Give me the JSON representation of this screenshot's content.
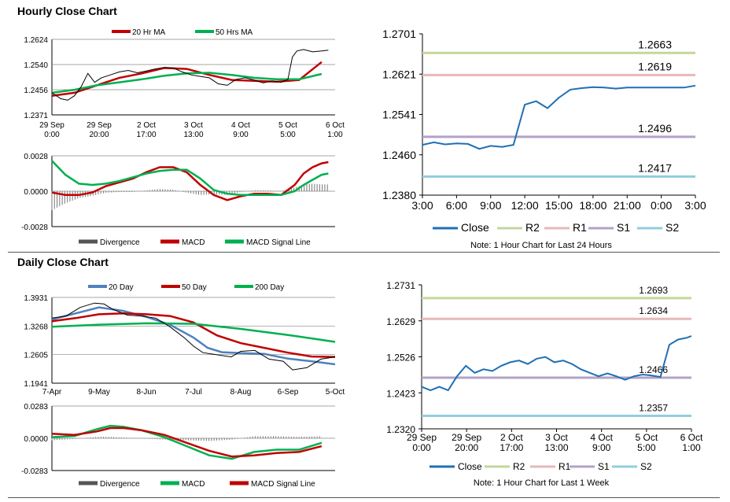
{
  "hourly": {
    "title": "Hourly Close Chart",
    "price_chart": {
      "type": "line",
      "legend": [
        "20 Hr MA",
        "50 Hrs MA"
      ],
      "yticks": [
        "1.2624",
        "1.2540",
        "1.2456",
        "1.2371"
      ],
      "ylim": [
        1.2371,
        1.2624
      ],
      "xticks": [
        [
          "29 Sep",
          "0:00"
        ],
        [
          "29 Sep",
          "20:00"
        ],
        [
          "2 Oct",
          "17:00"
        ],
        [
          "3 Oct",
          "13:00"
        ],
        [
          "4 Oct",
          "9:00"
        ],
        [
          "5 Oct",
          "5:00"
        ],
        [
          "6 Oct",
          "1:00"
        ]
      ],
      "series": [
        {
          "name": "20 Hr MA",
          "color": "#c00000",
          "x": [
            0,
            0.5,
            1,
            1.5,
            2,
            2.5,
            3,
            3.5,
            4,
            4.5,
            5,
            5.5,
            6
          ],
          "values": [
            1.2435,
            1.2445,
            1.247,
            1.2495,
            1.251,
            1.2528,
            1.2525,
            1.2505,
            1.2488,
            1.2485,
            1.2482,
            1.2488,
            1.2548
          ]
        },
        {
          "name": "50 Hrs MA",
          "color": "#00b050",
          "x": [
            0,
            0.5,
            1,
            1.5,
            2,
            2.5,
            3,
            3.5,
            4,
            4.5,
            5,
            5.5,
            6
          ],
          "values": [
            1.2445,
            1.2455,
            1.247,
            1.248,
            1.249,
            1.2502,
            1.251,
            1.2512,
            1.2505,
            1.2495,
            1.249,
            1.249,
            1.2508
          ]
        },
        {
          "name": "Close",
          "color": "#000000",
          "x": [
            0,
            0.2,
            0.35,
            0.5,
            0.65,
            0.8,
            0.95,
            1.1,
            1.3,
            1.5,
            1.7,
            1.9,
            2.1,
            2.3,
            2.5,
            2.7,
            2.9,
            3.1,
            3.3,
            3.5,
            3.7,
            3.9,
            4.1,
            4.3,
            4.5,
            4.7,
            4.9,
            5.1,
            5.25,
            5.35,
            5.45,
            5.6,
            5.8,
            6.0,
            6.15
          ],
          "values": [
            1.2445,
            1.2425,
            1.242,
            1.2435,
            1.2465,
            1.251,
            1.248,
            1.2495,
            1.2505,
            1.2515,
            1.252,
            1.2512,
            1.2518,
            1.2525,
            1.253,
            1.2528,
            1.2515,
            1.2505,
            1.25,
            1.2495,
            1.2475,
            1.247,
            1.249,
            1.2495,
            1.2488,
            1.2478,
            1.2485,
            1.248,
            1.249,
            1.2565,
            1.2585,
            1.259,
            1.2582,
            1.2585,
            1.2588
          ]
        }
      ]
    },
    "macd_chart": {
      "type": "line",
      "yticks": [
        "0.0028",
        "0.0000",
        "-0.0028"
      ],
      "ylim": [
        -0.0028,
        0.0028
      ],
      "legend": [
        "Divergence",
        "MACD",
        "MACD Signal Line"
      ],
      "series": [
        {
          "name": "MACD",
          "color": "#c00000",
          "x": [
            0,
            0.3,
            0.6,
            0.9,
            1.2,
            1.5,
            1.8,
            2.1,
            2.4,
            2.7,
            3.0,
            3.3,
            3.6,
            3.9,
            4.2,
            4.5,
            4.8,
            5.1,
            5.4,
            5.6,
            5.8,
            6.0,
            6.15
          ],
          "values": [
            -0.0001,
            -0.0003,
            -0.0003,
            -0.0001,
            0.0004,
            0.0007,
            0.001,
            0.0015,
            0.0019,
            0.0019,
            0.0015,
            0.0005,
            -0.0003,
            -0.0007,
            -0.0004,
            -0.0002,
            -0.0002,
            -0.0003,
            0.0005,
            0.0014,
            0.0019,
            0.0022,
            0.0023
          ]
        },
        {
          "name": "MACD Signal Line",
          "color": "#00b050",
          "x": [
            0,
            0.3,
            0.6,
            0.9,
            1.2,
            1.5,
            1.8,
            2.1,
            2.4,
            2.7,
            3.0,
            3.3,
            3.6,
            3.9,
            4.2,
            4.5,
            4.8,
            5.1,
            5.4,
            5.6,
            5.8,
            6.0,
            6.15
          ],
          "values": [
            0.0024,
            0.0013,
            0.0006,
            0.0005,
            0.0006,
            0.0008,
            0.0011,
            0.0014,
            0.0016,
            0.0017,
            0.0017,
            0.001,
            0.0001,
            -0.0002,
            -0.0003,
            -0.0003,
            -0.0003,
            -0.0003,
            0.0,
            0.0005,
            0.0009,
            0.0013,
            0.0014
          ]
        }
      ]
    },
    "levels_chart": {
      "type": "line",
      "yticks": [
        "1.2701",
        "1.2621",
        "1.2541",
        "1.2460",
        "1.2380"
      ],
      "ylim": [
        1.238,
        1.2701
      ],
      "xticks": [
        "3:00",
        "6:00",
        "9:00",
        "12:00",
        "15:00",
        "18:00",
        "21:00",
        "0:00",
        "3:00"
      ],
      "levels": [
        {
          "name": "R2",
          "value": 1.2663,
          "label": "1.2663",
          "color": "#c4d79b"
        },
        {
          "name": "R1",
          "value": 1.2619,
          "label": "1.2619",
          "color": "#e6b9b8"
        },
        {
          "name": "S1",
          "value": 1.2496,
          "label": "1.2496",
          "color": "#b3a2c7"
        },
        {
          "name": "S2",
          "value": 1.2417,
          "label": "1.2417",
          "color": "#93cddd"
        }
      ],
      "close": {
        "name": "Close",
        "color": "#1f6fb4",
        "x": [
          0,
          1,
          2,
          3,
          4,
          5,
          6,
          7,
          8,
          9,
          10,
          11,
          12,
          13,
          14,
          15,
          16,
          17,
          18,
          19,
          20,
          21,
          22,
          23,
          24
        ],
        "values": [
          1.248,
          1.2485,
          1.2481,
          1.2483,
          1.2482,
          1.2472,
          1.2478,
          1.2476,
          1.248,
          1.256,
          1.2567,
          1.2553,
          1.2574,
          1.259,
          1.2593,
          1.2595,
          1.2594,
          1.2592,
          1.2594,
          1.2594,
          1.2594,
          1.2594,
          1.2594,
          1.2594,
          1.2598
        ]
      },
      "legend": [
        "Close",
        "R2",
        "R1",
        "S1",
        "S2"
      ],
      "note": "Note: 1 Hour Chart for Last 24 Hours"
    }
  },
  "daily": {
    "title": "Daily Close Chart",
    "price_chart": {
      "type": "line",
      "legend": [
        "20 Day",
        "50 Day",
        "200 Day"
      ],
      "yticks": [
        "1.3931",
        "1.3268",
        "1.2605",
        "1.1941"
      ],
      "ylim": [
        1.1941,
        1.3931
      ],
      "xticks": [
        "7-Apr",
        "9-May",
        "8-Jun",
        "7-Jul",
        "8-Aug",
        "6-Sep",
        "5-Oct"
      ],
      "series": [
        {
          "name": "20 Day",
          "color": "#4f81bd",
          "x": [
            0,
            0.5,
            1,
            1.5,
            2,
            2.5,
            3,
            3.3,
            3.6,
            4,
            4.5,
            5,
            5.5,
            6
          ],
          "values": [
            1.342,
            1.356,
            1.37,
            1.362,
            1.348,
            1.33,
            1.3,
            1.276,
            1.266,
            1.264,
            1.262,
            1.251,
            1.245,
            1.238
          ]
        },
        {
          "name": "50 Day",
          "color": "#c00000",
          "x": [
            0,
            0.5,
            1,
            1.5,
            2,
            2.5,
            3,
            3.5,
            4,
            4.5,
            5,
            5.5,
            6
          ],
          "values": [
            1.338,
            1.345,
            1.354,
            1.356,
            1.354,
            1.35,
            1.335,
            1.305,
            1.287,
            1.276,
            1.265,
            1.256,
            1.255
          ]
        },
        {
          "name": "200 Day",
          "color": "#00b050",
          "x": [
            0,
            1,
            2,
            3,
            4,
            5,
            6
          ],
          "values": [
            1.325,
            1.33,
            1.333,
            1.332,
            1.32,
            1.306,
            1.29
          ]
        },
        {
          "name": "Close",
          "color": "#000000",
          "x": [
            0,
            0.3,
            0.6,
            0.9,
            1.1,
            1.3,
            1.6,
            1.9,
            2.2,
            2.5,
            2.8,
            3.0,
            3.2,
            3.5,
            3.8,
            4.0,
            4.3,
            4.6,
            4.9,
            5.1,
            5.4,
            5.7,
            6.0
          ],
          "values": [
            1.345,
            1.35,
            1.37,
            1.38,
            1.378,
            1.365,
            1.352,
            1.35,
            1.345,
            1.325,
            1.3,
            1.28,
            1.265,
            1.26,
            1.255,
            1.268,
            1.27,
            1.25,
            1.245,
            1.225,
            1.23,
            1.25,
            1.255
          ]
        }
      ]
    },
    "macd_chart": {
      "type": "line",
      "yticks": [
        "0.0283",
        "0.0000",
        "-0.0283"
      ],
      "ylim": [
        -0.0283,
        0.0283
      ],
      "legend": [
        "Divergence",
        "MACD",
        "MACD Signal Line"
      ],
      "series": [
        {
          "name": "MACD",
          "color": "#00b050",
          "x": [
            0,
            0.5,
            1,
            1.3,
            1.6,
            2,
            2.5,
            3,
            3.5,
            4,
            4.5,
            5,
            5.5,
            6
          ],
          "values": [
            0.001,
            0.002,
            0.008,
            0.011,
            0.01,
            0.007,
            0.001,
            -0.007,
            -0.015,
            -0.018,
            -0.012,
            -0.01,
            -0.01,
            -0.004
          ]
        },
        {
          "name": "MACD Signal Line",
          "color": "#c00000",
          "x": [
            0,
            0.5,
            1,
            1.3,
            1.6,
            2,
            2.5,
            3,
            3.5,
            4,
            4.5,
            5,
            5.5,
            6
          ],
          "values": [
            0.004,
            0.003,
            0.006,
            0.009,
            0.009,
            0.007,
            0.003,
            -0.004,
            -0.011,
            -0.016,
            -0.015,
            -0.013,
            -0.012,
            -0.007
          ]
        }
      ]
    },
    "levels_chart": {
      "type": "line",
      "yticks": [
        "1.2731",
        "1.2629",
        "1.2526",
        "1.2423",
        "1.2320"
      ],
      "ylim": [
        1.232,
        1.2731
      ],
      "xticks": [
        [
          "29 Sep",
          "0:00"
        ],
        [
          "29 Sep",
          "20:00"
        ],
        [
          "2 Oct",
          "17:00"
        ],
        [
          "3 Oct",
          "13:00"
        ],
        [
          "4 Oct",
          "9:00"
        ],
        [
          "5 Oct",
          "5:00"
        ],
        [
          "6 Oct",
          "1:00"
        ]
      ],
      "levels": [
        {
          "name": "R2",
          "value": 1.2693,
          "label": "1.2693",
          "color": "#c4d79b"
        },
        {
          "name": "R1",
          "value": 1.2634,
          "label": "1.2634",
          "color": "#e6b9b8"
        },
        {
          "name": "S1",
          "value": 1.2466,
          "label": "1.2466",
          "color": "#b3a2c7"
        },
        {
          "name": "S2",
          "value": 1.2357,
          "label": "1.2357",
          "color": "#93cddd"
        }
      ],
      "close": {
        "name": "Close",
        "color": "#1f6fb4",
        "x": [
          0,
          0.2,
          0.4,
          0.6,
          0.8,
          1.0,
          1.2,
          1.4,
          1.6,
          1.8,
          2.0,
          2.2,
          2.4,
          2.6,
          2.8,
          3.0,
          3.2,
          3.4,
          3.6,
          3.8,
          4.0,
          4.2,
          4.4,
          4.6,
          4.8,
          5.0,
          5.2,
          5.4,
          5.6,
          5.8,
          6.0,
          6.1
        ],
        "values": [
          1.244,
          1.243,
          1.244,
          1.243,
          1.247,
          1.25,
          1.248,
          1.249,
          1.2485,
          1.25,
          1.251,
          1.2515,
          1.2505,
          1.252,
          1.2525,
          1.251,
          1.2515,
          1.2505,
          1.249,
          1.248,
          1.247,
          1.2478,
          1.247,
          1.246,
          1.247,
          1.2475,
          1.2472,
          1.2468,
          1.256,
          1.2575,
          1.258,
          1.2585
        ]
      },
      "legend": [
        "Close",
        "R2",
        "R1",
        "S1",
        "S2"
      ],
      "note": "Note: 1 Hour Chart for Last 1 Week"
    }
  }
}
